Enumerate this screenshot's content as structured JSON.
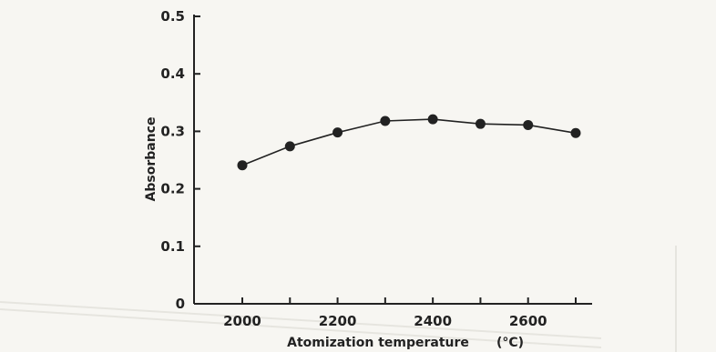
{
  "chart_data": {
    "type": "line",
    "title": "",
    "xlabel": "Atomization temperature",
    "xlabel_unit": "(°C)",
    "ylabel": "Absorbance",
    "xlim": [
      1900,
      2760
    ],
    "ylim": [
      0,
      0.5
    ],
    "x_ticks": [
      2000,
      2200,
      2400,
      2600
    ],
    "x_minor_ticks": [
      2100,
      2300,
      2500,
      2700
    ],
    "y_ticks": [
      0,
      0.1,
      0.2,
      0.3,
      0.4,
      0.5
    ],
    "y_tick_labels": [
      "0",
      "0.1",
      "0.2",
      "0.3",
      "0.4",
      "0.5"
    ],
    "grid": false,
    "series": [
      {
        "x": [
          2000,
          2100,
          2200,
          2300,
          2400,
          2500,
          2600,
          2700
        ],
        "values": [
          0.241,
          0.274,
          0.298,
          0.318,
          0.321,
          0.313,
          0.311,
          0.297
        ]
      }
    ],
    "line_color": "#222222",
    "marker_color": "#222222"
  }
}
